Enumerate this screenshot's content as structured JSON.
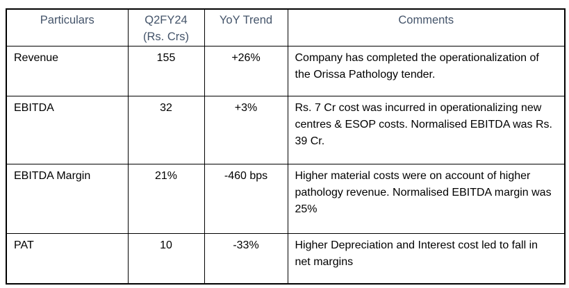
{
  "page": {
    "background": "#FFFFFF"
  },
  "colors": {
    "header_text": "#44546A",
    "body_text": "#000000",
    "border": "#000000"
  },
  "table": {
    "columns": [
      {
        "label": "Particulars",
        "sub": ""
      },
      {
        "label": "Q2FY24",
        "sub": "(Rs. Crs)"
      },
      {
        "label": "YoY Trend",
        "sub": ""
      },
      {
        "label": "Comments",
        "sub": ""
      }
    ],
    "rows": [
      {
        "particulars": "Revenue",
        "value": "155",
        "trend": "+26%",
        "comment": "Company has completed the operationalization of the Orissa Pathology tender."
      },
      {
        "particulars": "EBITDA",
        "value": "32",
        "trend": "+3%",
        "comment": "Rs. 7 Cr cost was incurred in operationalizing new centres & ESOP costs. Normalised EBITDA was Rs. 39 Cr."
      },
      {
        "particulars": "EBITDA Margin",
        "value": "21%",
        "trend": "-460 bps",
        "comment": "Higher material costs were on account of higher pathology revenue. Normalised EBITDA margin was 25%"
      },
      {
        "particulars": "PAT",
        "value": "10",
        "trend": "-33%",
        "comment": "Higher Depreciation and Interest cost led to fall in net margins"
      }
    ]
  }
}
